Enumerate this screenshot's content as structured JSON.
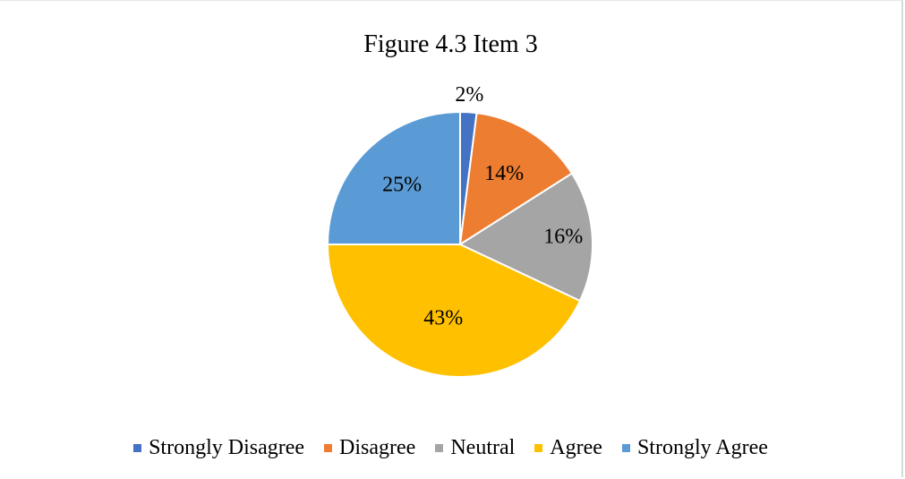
{
  "chart_data": {
    "type": "pie",
    "title": "Figure 4.3 Item 3",
    "categories": [
      "Strongly Disagree",
      "Disagree",
      "Neutral",
      "Agree",
      "Strongly Agree"
    ],
    "values": [
      2,
      14,
      16,
      43,
      25
    ],
    "labels": [
      "2%",
      "14%",
      "16%",
      "43%",
      "25%"
    ],
    "colors": [
      "#4472c4",
      "#ed7d31",
      "#a5a5a5",
      "#ffc000",
      "#5b9bd5"
    ],
    "legend": "bottom"
  }
}
